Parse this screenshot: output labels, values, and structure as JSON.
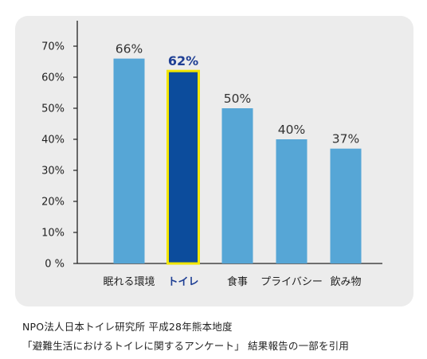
{
  "chart_data": {
    "type": "bar",
    "categories": [
      "眠れる環境",
      "トイレ",
      "食事",
      "プライバシー",
      "飲み物"
    ],
    "values": [
      66,
      62,
      50,
      40,
      37
    ],
    "value_labels": [
      "66%",
      "62%",
      "50%",
      "40%",
      "37%"
    ],
    "highlight_index": 1,
    "y_ticks": [
      0,
      10,
      20,
      30,
      40,
      50,
      60,
      70
    ],
    "y_tick_labels": [
      "0 %",
      "10%",
      "20%",
      "30%",
      "40%",
      "50%",
      "60%",
      "70%"
    ],
    "ylim": [
      0,
      70
    ],
    "grid": false,
    "colors": {
      "bar": "#56a6d6",
      "highlight_bar": "#0c4c9c",
      "highlight_border": "#f2e600",
      "highlight_text": "#1f3f94",
      "axis": "#222222",
      "panel": "#ececec"
    }
  },
  "source": {
    "line1": "NPO法人日本トイレ研究所 平成28年熊本地度",
    "line2": "「避難生活におけるトイレに関するアンケート」 結果報告の一部を引用"
  }
}
